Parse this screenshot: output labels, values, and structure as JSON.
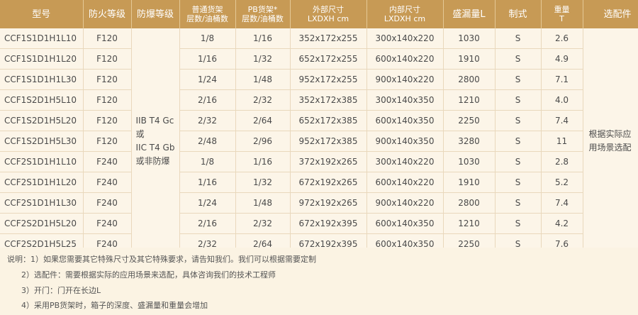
{
  "headers": {
    "model": "型号",
    "fire": "防火等级",
    "explosion": "防爆等级",
    "normal_shelf_l1": "普通货架",
    "normal_shelf_l2": "层数/油桶数",
    "pb_shelf_l1": "PB货架*",
    "pb_shelf_l2": "层数/油桶数",
    "outer_l1": "外部尺寸",
    "outer_l2": "LXDXH cm",
    "inner_l1": "内部尺寸",
    "inner_l2": "LXDXH cm",
    "capacity": "盛漏量L",
    "standard": "制式",
    "weight_l1": "重量",
    "weight_l2": "T",
    "options": "选配件"
  },
  "explosion_text": [
    "IIB T4 Gc",
    "或",
    "IIC T4 Gb",
    "或非防爆"
  ],
  "options_text": [
    "根据实际应",
    "用场景选配"
  ],
  "rows": [
    {
      "model": "CCF1S1D1H1L10",
      "fire": "F120",
      "normal": "1/8",
      "pb": "1/16",
      "outer": "352x172x255",
      "inner": "300x140x220",
      "capacity": "1030",
      "standard": "S",
      "weight": "2.6"
    },
    {
      "model": "CCF1S1D1H1L20",
      "fire": "F120",
      "normal": "1/16",
      "pb": "1/32",
      "outer": "652x172x255",
      "inner": "600x140x220",
      "capacity": "1910",
      "standard": "S",
      "weight": "4.9"
    },
    {
      "model": "CCF1S1D1H1L30",
      "fire": "F120",
      "normal": "1/24",
      "pb": "1/48",
      "outer": "952x172x255",
      "inner": "900x140x220",
      "capacity": "2800",
      "standard": "S",
      "weight": "7.1"
    },
    {
      "model": "CCF1S2D1H5L10",
      "fire": "F120",
      "normal": "2/16",
      "pb": "2/32",
      "outer": "352x172x385",
      "inner": "300x140x350",
      "capacity": "1210",
      "standard": "S",
      "weight": "4.0"
    },
    {
      "model": "CCF1S2D1H5L20",
      "fire": "F120",
      "normal": "2/32",
      "pb": "2/64",
      "outer": "652x172x385",
      "inner": "600x140x350",
      "capacity": "2250",
      "standard": "S",
      "weight": "7.4"
    },
    {
      "model": "CCF1S2D1H5L30",
      "fire": "F120",
      "normal": "2/48",
      "pb": "2/96",
      "outer": "952x172x385",
      "inner": "900x140x350",
      "capacity": "3280",
      "standard": "S",
      "weight": "11"
    },
    {
      "model": "CCF2S1D1H1L10",
      "fire": "F240",
      "normal": "1/8",
      "pb": "1/16",
      "outer": "372x192x265",
      "inner": "300x140x220",
      "capacity": "1030",
      "standard": "S",
      "weight": "2.8"
    },
    {
      "model": "CCF2S1D1H1L20",
      "fire": "F240",
      "normal": "1/16",
      "pb": "1/32",
      "outer": "672x192x265",
      "inner": "600x140x220",
      "capacity": "1910",
      "standard": "S",
      "weight": "5.2"
    },
    {
      "model": "CCF2S1D1H1L30",
      "fire": "F240",
      "normal": "1/24",
      "pb": "1/48",
      "outer": "972x192x265",
      "inner": "900x140x220",
      "capacity": "2800",
      "standard": "S",
      "weight": "7.4"
    },
    {
      "model": "CCF2S2D1H5L20",
      "fire": "F240",
      "normal": "2/16",
      "pb": "2/32",
      "outer": "672x192x395",
      "inner": "600x140x350",
      "capacity": "1210",
      "standard": "S",
      "weight": "4.2"
    },
    {
      "model": "CCF2S2D1H5L25",
      "fire": "F240",
      "normal": "2/32",
      "pb": "2/64",
      "outer": "672x192x395",
      "inner": "600x140x350",
      "capacity": "2250",
      "standard": "S",
      "weight": "7.6"
    }
  ],
  "notes": [
    "说明：1）如果您需要其它特殊尺寸及其它特殊要求，请告知我们。我们可以根据需要定制",
    "2）选配件：需要根据实际的应用场景来选配，具体咨询我们的技术工程师",
    "3）开门：门开在长边L",
    "4）采用PB货架时，箱子的深度、盛漏量和重量会增加"
  ]
}
